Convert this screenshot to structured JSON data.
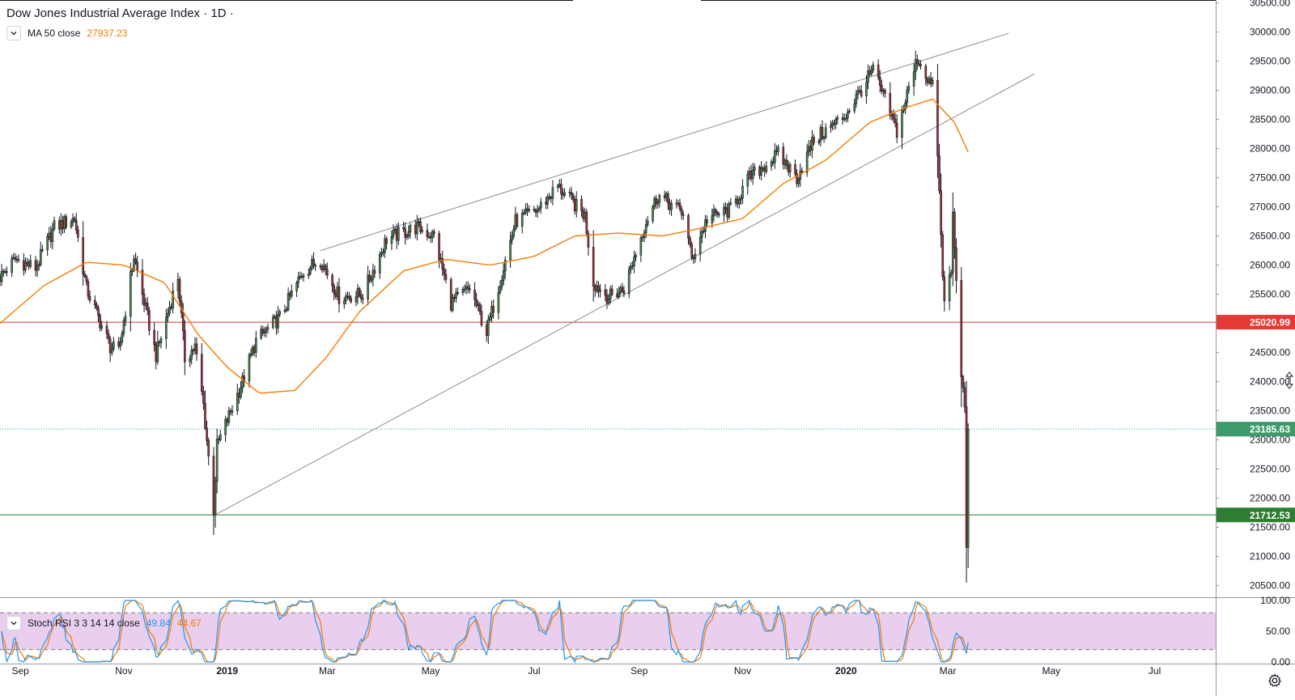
{
  "header": {
    "title": "Dow Jones Industrial Average Index · 1D ·",
    "ma_label": "MA 50 close",
    "ma_value": "27937.23"
  },
  "rsi_legend": {
    "label": "Stoch RSI 3 3 14 14 close",
    "k_value": "49.84",
    "d_value": "44.67"
  },
  "colors": {
    "up": "#4a8f4a",
    "down": "#a83232",
    "ma": "#f57c00",
    "k_line": "#2196f3",
    "d_line": "#f57c00",
    "red_line": "#e53935",
    "green_line": "#2e7d32",
    "rsi_band": "#e1bee7"
  },
  "chart_data": [
    {
      "type": "candlestick",
      "title": "Dow Jones Industrial Average Index · 1D ·",
      "y_range": [
        20300,
        30550
      ],
      "y_ticks": [
        20500,
        21000,
        21500,
        22000,
        22500,
        23000,
        23500,
        24000,
        24500,
        25000,
        25500,
        26000,
        26500,
        27000,
        27500,
        28000,
        28500,
        29000,
        29500,
        30000,
        30500
      ],
      "x_range": [
        "2018-08-20",
        "2020-08-06"
      ],
      "x_ticks": [
        {
          "label": "Sep",
          "date": "2018-09-01"
        },
        {
          "label": "Nov",
          "date": "2018-11-01"
        },
        {
          "label": "2019",
          "date": "2019-01-01"
        },
        {
          "label": "Mar",
          "date": "2019-03-01"
        },
        {
          "label": "May",
          "date": "2019-05-01"
        },
        {
          "label": "Jul",
          "date": "2019-07-01"
        },
        {
          "label": "Sep",
          "date": "2019-09-01"
        },
        {
          "label": "Nov",
          "date": "2019-11-01"
        },
        {
          "label": "2020",
          "date": "2020-01-01"
        },
        {
          "label": "Mar",
          "date": "2020-03-01"
        },
        {
          "label": "May",
          "date": "2020-05-01"
        },
        {
          "label": "Jul",
          "date": "2020-07-01"
        }
      ],
      "close_path": [
        [
          "2018-08-20",
          25800
        ],
        [
          "2018-08-29",
          26100
        ],
        [
          "2018-09-10",
          25950
        ],
        [
          "2018-09-21",
          26650
        ],
        [
          "2018-10-03",
          26800
        ],
        [
          "2018-10-10",
          25600
        ],
        [
          "2018-10-24",
          24600
        ],
        [
          "2018-10-29",
          24500
        ],
        [
          "2018-11-07",
          26150
        ],
        [
          "2018-11-20",
          24450
        ],
        [
          "2018-11-30",
          25500
        ],
        [
          "2018-12-03",
          25800
        ],
        [
          "2018-12-07",
          24400
        ],
        [
          "2018-12-13",
          24600
        ],
        [
          "2018-12-18",
          23600
        ],
        [
          "2018-12-24",
          21800
        ],
        [
          "2018-12-26",
          22900
        ],
        [
          "2019-01-10",
          24000
        ],
        [
          "2019-01-18",
          24700
        ],
        [
          "2019-02-01",
          25100
        ],
        [
          "2019-02-15",
          25900
        ],
        [
          "2019-02-25",
          26100
        ],
        [
          "2019-03-08",
          25450
        ],
        [
          "2019-03-22",
          25500
        ],
        [
          "2019-04-05",
          26450
        ],
        [
          "2019-04-23",
          26650
        ],
        [
          "2019-05-03",
          26500
        ],
        [
          "2019-05-13",
          25350
        ],
        [
          "2019-05-24",
          25600
        ],
        [
          "2019-06-03",
          24850
        ],
        [
          "2019-06-20",
          26750
        ],
        [
          "2019-07-03",
          26950
        ],
        [
          "2019-07-15",
          27350
        ],
        [
          "2019-07-31",
          26850
        ],
        [
          "2019-08-05",
          25700
        ],
        [
          "2019-08-14",
          25450
        ],
        [
          "2019-08-23",
          25600
        ],
        [
          "2019-09-05",
          26750
        ],
        [
          "2019-09-12",
          27200
        ],
        [
          "2019-09-27",
          26900
        ],
        [
          "2019-10-02",
          26100
        ],
        [
          "2019-10-11",
          26800
        ],
        [
          "2019-10-25",
          26950
        ],
        [
          "2019-11-05",
          27500
        ],
        [
          "2019-11-22",
          27900
        ],
        [
          "2019-12-03",
          27500
        ],
        [
          "2019-12-13",
          28150
        ],
        [
          "2019-12-31",
          28550
        ],
        [
          "2020-01-17",
          29350
        ],
        [
          "2020-01-31",
          28300
        ],
        [
          "2020-02-12",
          29550
        ],
        [
          "2020-02-21",
          29050
        ],
        [
          "2020-02-24",
          27950
        ],
        [
          "2020-02-27",
          25750
        ],
        [
          "2020-02-28",
          25400
        ],
        [
          "2020-03-03",
          25900
        ],
        [
          "2020-03-04",
          26850
        ],
        [
          "2020-03-06",
          25850
        ],
        [
          "2020-03-09",
          24000
        ],
        [
          "2020-03-11",
          23550
        ],
        [
          "2020-03-12",
          21200
        ],
        [
          "2020-03-13",
          23185.63
        ]
      ],
      "ma50_path": [
        [
          "2018-08-20",
          25000
        ],
        [
          "2018-09-15",
          25650
        ],
        [
          "2018-10-10",
          26050
        ],
        [
          "2018-11-01",
          26000
        ],
        [
          "2018-11-25",
          25700
        ],
        [
          "2018-12-15",
          24800
        ],
        [
          "2019-01-01",
          24250
        ],
        [
          "2019-01-20",
          23800
        ],
        [
          "2019-02-10",
          23850
        ],
        [
          "2019-02-28",
          24400
        ],
        [
          "2019-03-20",
          25200
        ],
        [
          "2019-04-15",
          25900
        ],
        [
          "2019-05-10",
          26100
        ],
        [
          "2019-06-05",
          26000
        ],
        [
          "2019-07-01",
          26150
        ],
        [
          "2019-07-25",
          26500
        ],
        [
          "2019-08-20",
          26550
        ],
        [
          "2019-09-15",
          26500
        ],
        [
          "2019-10-10",
          26650
        ],
        [
          "2019-11-01",
          26800
        ],
        [
          "2019-11-25",
          27400
        ],
        [
          "2019-12-20",
          27800
        ],
        [
          "2020-01-15",
          28450
        ],
        [
          "2020-02-05",
          28700
        ],
        [
          "2020-02-21",
          28850
        ],
        [
          "2020-03-05",
          28450
        ],
        [
          "2020-03-13",
          27937.23
        ]
      ],
      "trendlines": [
        {
          "name": "upper-resistance",
          "from": [
            "2019-02-25",
            26250
          ],
          "to": [
            "2020-04-06",
            29980
          ]
        },
        {
          "name": "lower-support",
          "from": [
            "2018-12-24",
            21700
          ],
          "to": [
            "2020-04-21",
            29280
          ]
        }
      ],
      "horizontal_levels": [
        {
          "value": 25020.99,
          "label": "25020.99",
          "style": "solid",
          "color": "#e53935"
        },
        {
          "value": 23185.63,
          "label": "23185.63",
          "style": "dotted",
          "color": "#26a69a"
        },
        {
          "value": 21712.53,
          "label": "21712.53",
          "style": "solid",
          "color": "#2e7d32"
        }
      ],
      "last_close": 23185.63
    },
    {
      "type": "line",
      "title": "Stoch RSI 3 3 14 14 close",
      "y_range": [
        0,
        100
      ],
      "y_ticks": [
        0,
        50,
        100
      ],
      "bands": [
        20,
        80
      ],
      "series": [
        {
          "name": "K",
          "last": 49.84
        },
        {
          "name": "D",
          "last": 44.67
        }
      ]
    }
  ]
}
